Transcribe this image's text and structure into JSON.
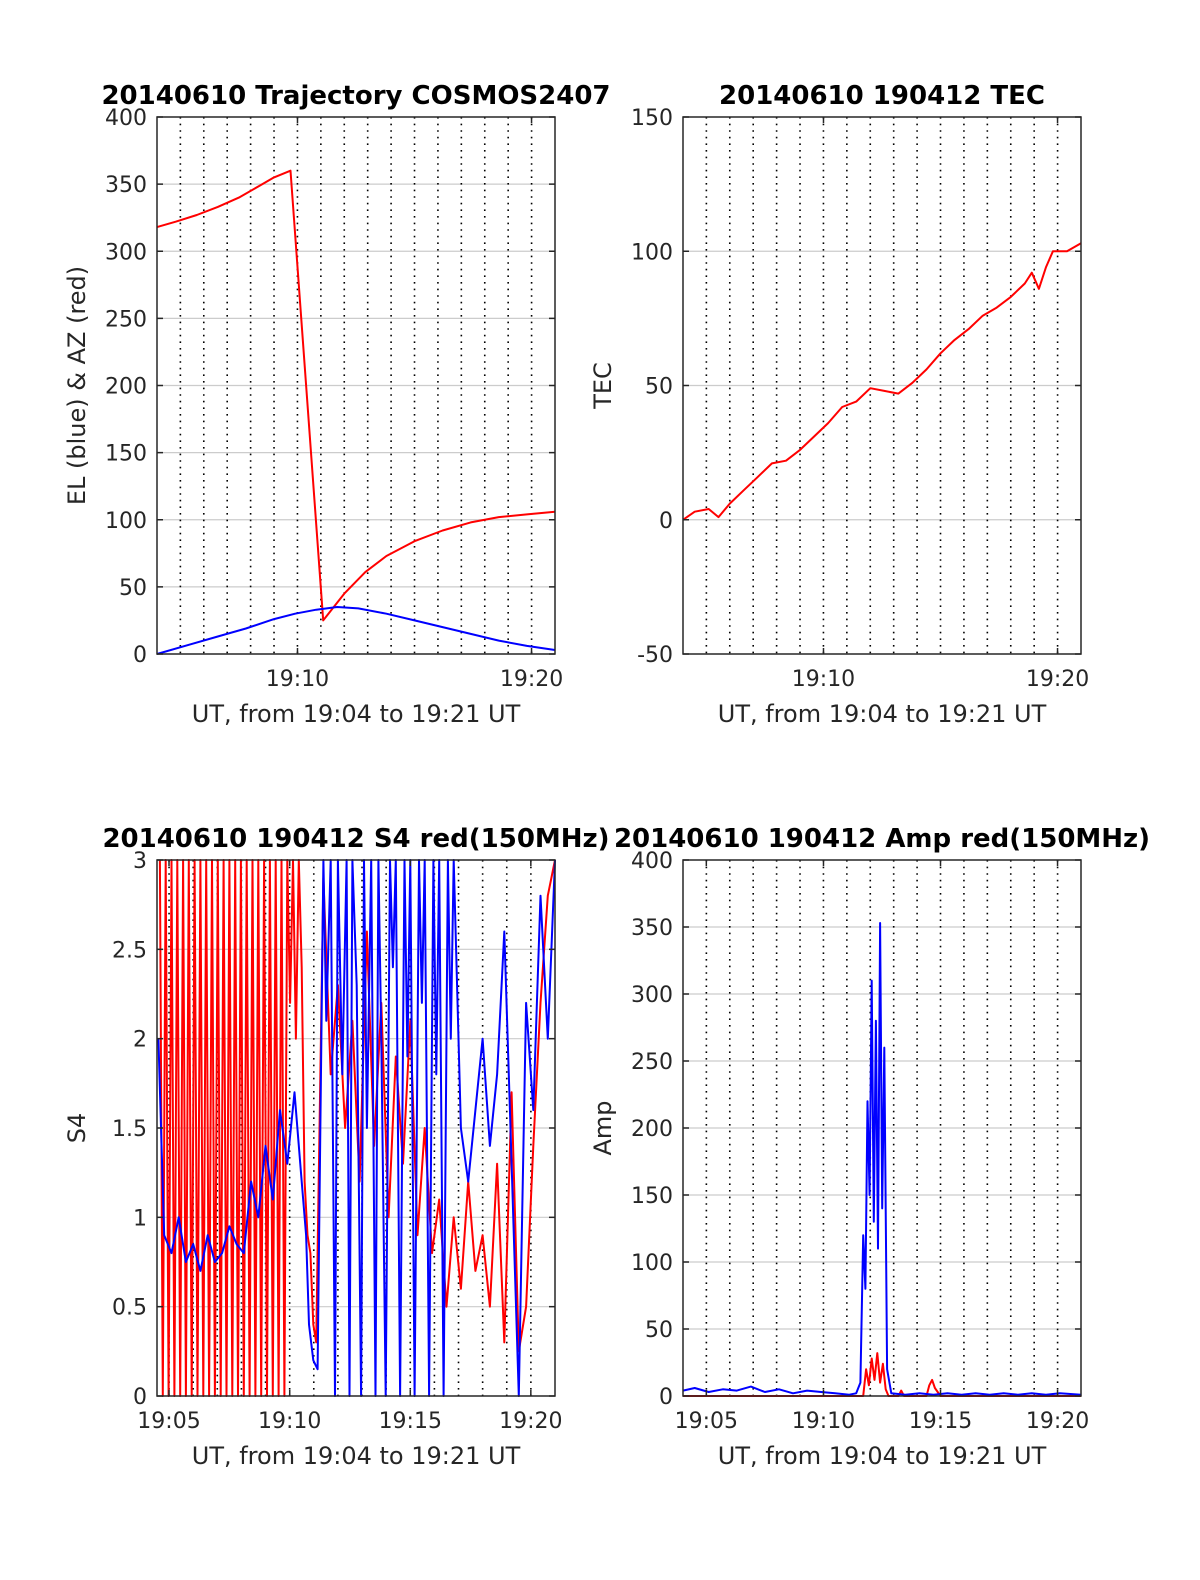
{
  "colors": {
    "az": "#ff0000",
    "el": "#0000ff",
    "red": "#ff0000",
    "blue": "#0000ff",
    "grid": "#cccccc",
    "dotgrid": "#000000"
  },
  "chart_data": [
    {
      "type": "line",
      "title": "20140610 Trajectory COSMOS2407",
      "xlabel": "UT, from 19:04 to 19:21 UT",
      "ylabel": "EL (blue) & AZ (red)",
      "xlim": [
        19.0667,
        19.35
      ],
      "ylim": [
        0,
        400
      ],
      "yticks": [
        0,
        50,
        100,
        150,
        200,
        250,
        300,
        350,
        400
      ],
      "yticklabels": [
        "0",
        "50",
        "100",
        "150",
        "200",
        "250",
        "300",
        "350",
        "400"
      ],
      "xticks": [
        19.1667,
        19.3333
      ],
      "xticklabels": [
        "19:10",
        "19:20"
      ],
      "minute_lines": true,
      "series": [
        {
          "color": "red",
          "x": [
            19.0667,
            19.08,
            19.095,
            19.11,
            19.125,
            19.14,
            19.15,
            19.1617,
            19.185,
            19.2,
            19.215,
            19.23,
            19.25,
            19.27,
            19.29,
            19.31,
            19.33,
            19.35
          ],
          "y": [
            318,
            322,
            327,
            333,
            340,
            349,
            355,
            360,
            25,
            45,
            61,
            73,
            84,
            92,
            98,
            102,
            104,
            106
          ]
        },
        {
          "color": "blue",
          "x": [
            19.0667,
            19.09,
            19.11,
            19.13,
            19.15,
            19.165,
            19.18,
            19.195,
            19.21,
            19.23,
            19.25,
            19.27,
            19.29,
            19.31,
            19.33,
            19.35
          ],
          "y": [
            0,
            7,
            13,
            19,
            26,
            30,
            33,
            35,
            34,
            30,
            25,
            20,
            15,
            10,
            6,
            3
          ]
        }
      ]
    },
    {
      "type": "line",
      "title": "20140610 190412 TEC",
      "xlabel": "UT, from 19:04 to 19:21 UT",
      "ylabel": "TEC",
      "xlim": [
        19.0667,
        19.35
      ],
      "ylim": [
        -50,
        150
      ],
      "yticks": [
        -50,
        0,
        50,
        100,
        150
      ],
      "yticklabels": [
        "-50",
        "0",
        "50",
        "100",
        "150"
      ],
      "xticks": [
        19.1667,
        19.3333
      ],
      "xticklabels": [
        "19:10",
        "19:20"
      ],
      "minute_lines": true,
      "series": [
        {
          "color": "red",
          "x": [
            19.0667,
            19.075,
            19.085,
            19.092,
            19.1,
            19.11,
            19.12,
            19.13,
            19.14,
            19.15,
            19.16,
            19.17,
            19.18,
            19.19,
            19.2,
            19.21,
            19.22,
            19.23,
            19.24,
            19.25,
            19.26,
            19.27,
            19.28,
            19.29,
            19.3,
            19.31,
            19.315,
            19.32,
            19.325,
            19.33,
            19.34,
            19.35
          ],
          "y": [
            0,
            3,
            4,
            1,
            6,
            11,
            16,
            21,
            22,
            26,
            31,
            36,
            42,
            44,
            49,
            48,
            47,
            51,
            56,
            62,
            67,
            71,
            76,
            79,
            83,
            88,
            92,
            86,
            94,
            100,
            100,
            103
          ]
        }
      ]
    },
    {
      "type": "line",
      "title": "20140610 190412 S4 red(150MHz)",
      "xlabel": "UT, from 19:04 to 19:21 UT",
      "ylabel": "S4",
      "xlim": [
        19.075,
        19.35
      ],
      "ylim": [
        0,
        3
      ],
      "yticks": [
        0,
        0.5,
        1,
        1.5,
        2,
        2.5,
        3
      ],
      "yticklabels": [
        "0",
        "0.5",
        "1",
        "1.5",
        "2",
        "2.5",
        "3"
      ],
      "xticks": [
        19.0833,
        19.1667,
        19.25,
        19.3333
      ],
      "xticklabels": [
        "19:05",
        "19:10",
        "19:15",
        "19:20"
      ],
      "minute_lines": true,
      "series": [
        {
          "color": "red",
          "x": [
            19.077,
            19.079,
            19.081,
            19.083,
            19.085,
            19.087,
            19.089,
            19.091,
            19.093,
            19.095,
            19.097,
            19.099,
            19.101,
            19.103,
            19.105,
            19.107,
            19.109,
            19.111,
            19.113,
            19.115,
            19.117,
            19.119,
            19.121,
            19.123,
            19.125,
            19.127,
            19.129,
            19.131,
            19.133,
            19.135,
            19.137,
            19.139,
            19.141,
            19.143,
            19.145,
            19.147,
            19.149,
            19.151,
            19.153,
            19.155,
            19.157,
            19.159,
            19.161,
            19.163,
            19.165,
            19.167,
            19.169,
            19.171,
            19.173,
            19.175,
            19.177,
            19.179,
            19.181,
            19.183,
            19.185,
            19.19,
            19.195,
            19.2,
            19.205,
            19.21,
            19.215,
            19.22,
            19.225,
            19.23,
            19.235,
            19.24,
            19.245,
            19.25,
            19.255,
            19.26,
            19.265,
            19.27,
            19.275,
            19.28,
            19.285,
            19.29,
            19.295,
            19.3,
            19.305,
            19.31,
            19.315,
            19.32,
            19.325,
            19.33,
            19.335,
            19.34,
            19.345,
            19.35
          ],
          "y": [
            3,
            0,
            3,
            0,
            3,
            0,
            3,
            0,
            3,
            0,
            3,
            0,
            3,
            0,
            3,
            0,
            3,
            0,
            3,
            0,
            3,
            0,
            3,
            0,
            3,
            0,
            3,
            0,
            3,
            0,
            3,
            0,
            3,
            0,
            3,
            0,
            3,
            0,
            3,
            0,
            3,
            0,
            3,
            0,
            3,
            2.2,
            3,
            2.0,
            3,
            2.4,
            1.2,
            0.9,
            0.8,
            0.4,
            0.3,
            2.9,
            1.8,
            2.3,
            1.5,
            2.1,
            1.2,
            2.6,
            1.4,
            2.2,
            1.0,
            1.9,
            1.3,
            2.1,
            0.9,
            1.5,
            0.8,
            1.1,
            0.5,
            1.0,
            0.6,
            1.2,
            0.7,
            0.9,
            0.5,
            1.3,
            0.3,
            1.7,
            0.25,
            0.5,
            1.4,
            2.2,
            2.8,
            3
          ]
        },
        {
          "color": "blue",
          "x": [
            19.076,
            19.08,
            19.085,
            19.09,
            19.095,
            19.1,
            19.105,
            19.11,
            19.115,
            19.12,
            19.125,
            19.13,
            19.135,
            19.14,
            19.145,
            19.15,
            19.155,
            19.16,
            19.165,
            19.17,
            19.175,
            19.178,
            19.18,
            19.183,
            19.186,
            19.19,
            19.192,
            19.195,
            19.198,
            19.2,
            19.203,
            19.206,
            19.208,
            19.21,
            19.213,
            19.216,
            19.218,
            19.22,
            19.223,
            19.226,
            19.228,
            19.23,
            19.233,
            19.236,
            19.238,
            19.24,
            19.243,
            19.246,
            19.248,
            19.25,
            19.253,
            19.256,
            19.258,
            19.26,
            19.263,
            19.266,
            19.268,
            19.27,
            19.273,
            19.276,
            19.278,
            19.28,
            19.285,
            19.29,
            19.295,
            19.3,
            19.305,
            19.31,
            19.315,
            19.32,
            19.325,
            19.33,
            19.335,
            19.34,
            19.345,
            19.35
          ],
          "y": [
            2.0,
            0.9,
            0.8,
            1.0,
            0.75,
            0.85,
            0.7,
            0.9,
            0.75,
            0.8,
            0.95,
            0.85,
            0.8,
            1.2,
            1.0,
            1.4,
            1.1,
            1.6,
            1.3,
            1.7,
            1.2,
            0.9,
            0.4,
            0.2,
            0.15,
            3,
            2.1,
            3,
            0,
            3,
            1.8,
            3,
            0,
            3,
            2.3,
            0,
            3,
            1.5,
            3,
            0,
            3,
            2.0,
            0,
            3,
            2.4,
            3,
            0,
            3,
            1.9,
            3,
            0,
            3,
            2.2,
            3,
            0,
            3,
            1.8,
            3,
            0,
            3,
            2.0,
            3,
            1.5,
            1.2,
            1.6,
            2.0,
            1.4,
            1.8,
            2.6,
            1.3,
            0,
            2.2,
            1.6,
            2.8,
            2.0,
            3
          ]
        }
      ]
    },
    {
      "type": "line",
      "title": "20140610 190412 Amp red(150MHz)",
      "xlabel": "UT, from 19:04 to 19:21 UT",
      "ylabel": "Amp",
      "xlim": [
        19.0667,
        19.35
      ],
      "ylim": [
        0,
        400
      ],
      "yticks": [
        0,
        50,
        100,
        150,
        200,
        250,
        300,
        350,
        400
      ],
      "yticklabels": [
        "0",
        "50",
        "100",
        "150",
        "200",
        "250",
        "300",
        "350",
        "400"
      ],
      "xticks": [
        19.0833,
        19.1667,
        19.25,
        19.3333
      ],
      "xticklabels": [
        "19:05",
        "19:10",
        "19:15",
        "19:20"
      ],
      "minute_lines": true,
      "series": [
        {
          "color": "red",
          "x": [
            19.0667,
            19.18,
            19.195,
            19.197,
            19.199,
            19.201,
            19.203,
            19.205,
            19.207,
            19.209,
            19.211,
            19.213,
            19.22,
            19.222,
            19.224,
            19.24,
            19.242,
            19.244,
            19.246,
            19.25,
            19.35
          ],
          "y": [
            0,
            0,
            0,
            20,
            8,
            28,
            12,
            32,
            10,
            24,
            5,
            0,
            0,
            4,
            0,
            0,
            8,
            12,
            6,
            0,
            0
          ]
        },
        {
          "color": "blue",
          "x": [
            19.0667,
            19.075,
            19.085,
            19.095,
            19.105,
            19.115,
            19.125,
            19.135,
            19.145,
            19.155,
            19.165,
            19.175,
            19.185,
            19.19,
            19.193,
            19.195,
            19.1965,
            19.198,
            19.1995,
            19.201,
            19.2025,
            19.204,
            19.2055,
            19.207,
            19.2085,
            19.21,
            19.212,
            19.215,
            19.225,
            19.235,
            19.245,
            19.255,
            19.265,
            19.275,
            19.285,
            19.295,
            19.305,
            19.315,
            19.325,
            19.335,
            19.35
          ],
          "y": [
            4,
            6,
            3,
            5,
            4,
            7,
            3,
            5,
            2,
            4,
            3,
            2,
            1,
            2,
            10,
            120,
            80,
            220,
            150,
            310,
            130,
            280,
            110,
            353,
            140,
            260,
            20,
            2,
            1,
            2,
            1,
            2,
            1,
            2,
            1,
            2,
            1,
            2,
            1,
            2,
            1
          ]
        }
      ]
    }
  ]
}
